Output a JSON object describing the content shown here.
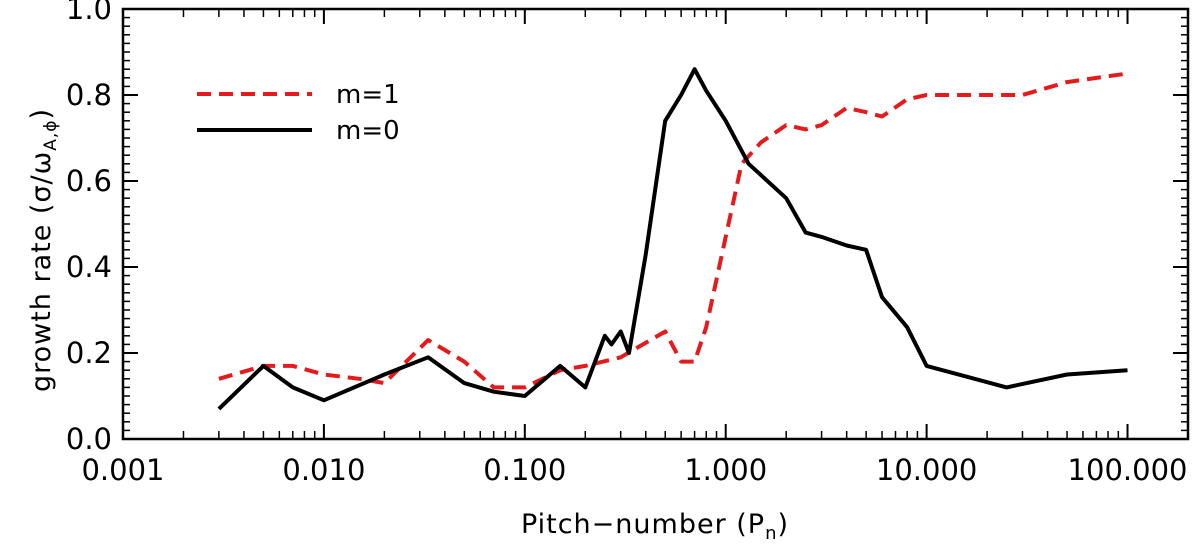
{
  "chart_data": {
    "type": "line",
    "xscale": "log",
    "xlim": [
      0.001,
      200
    ],
    "ylim": [
      0.0,
      1.0
    ],
    "x_ticks": [
      0.001,
      0.01,
      0.1,
      1,
      10,
      100
    ],
    "x_tick_labels": [
      "0.001",
      "0.010",
      "0.100",
      "1.000",
      "10.000",
      "100.000"
    ],
    "y_ticks": [
      0.0,
      0.2,
      0.4,
      0.6,
      0.8,
      1.0
    ],
    "y_tick_labels": [
      "0.0",
      "0.2",
      "0.4",
      "0.6",
      "0.8",
      "1.0"
    ],
    "xlabel_main": "Pitch−number (P",
    "xlabel_sub": "n",
    "xlabel_close": ")",
    "ylabel_main": "growth rate (σ/ω",
    "ylabel_sub": "A,ϕ",
    "ylabel_close": ")",
    "grid": false,
    "legend_position": "top-left",
    "series": [
      {
        "name": "m=1",
        "color": "#e41a1c",
        "dash": "dashed",
        "x": [
          0.003,
          0.005,
          0.007,
          0.01,
          0.015,
          0.02,
          0.033,
          0.05,
          0.07,
          0.1,
          0.15,
          0.2,
          0.3,
          0.5,
          0.6,
          0.7,
          0.8,
          1.0,
          1.2,
          1.5,
          2.0,
          2.5,
          3.0,
          4.0,
          5.0,
          6.0,
          8.0,
          10.0,
          20.0,
          30.0,
          50.0,
          100.0
        ],
        "y": [
          0.14,
          0.17,
          0.17,
          0.15,
          0.14,
          0.13,
          0.23,
          0.18,
          0.12,
          0.12,
          0.16,
          0.17,
          0.19,
          0.25,
          0.18,
          0.18,
          0.26,
          0.47,
          0.64,
          0.69,
          0.73,
          0.72,
          0.73,
          0.77,
          0.76,
          0.75,
          0.79,
          0.8,
          0.8,
          0.8,
          0.83,
          0.85
        ]
      },
      {
        "name": "m=0",
        "color": "#000000",
        "dash": "solid",
        "x": [
          0.003,
          0.005,
          0.007,
          0.01,
          0.02,
          0.033,
          0.05,
          0.07,
          0.1,
          0.15,
          0.2,
          0.25,
          0.27,
          0.3,
          0.33,
          0.4,
          0.5,
          0.6,
          0.7,
          0.8,
          1.0,
          1.3,
          2.0,
          2.5,
          3.0,
          4.0,
          5.0,
          6.0,
          8.0,
          10.0,
          25.0,
          50.0,
          100.0
        ],
        "y": [
          0.07,
          0.17,
          0.12,
          0.09,
          0.15,
          0.19,
          0.13,
          0.11,
          0.1,
          0.17,
          0.12,
          0.24,
          0.22,
          0.25,
          0.2,
          0.43,
          0.74,
          0.8,
          0.86,
          0.81,
          0.74,
          0.64,
          0.56,
          0.48,
          0.47,
          0.45,
          0.44,
          0.33,
          0.26,
          0.17,
          0.12,
          0.15,
          0.16
        ]
      }
    ]
  }
}
